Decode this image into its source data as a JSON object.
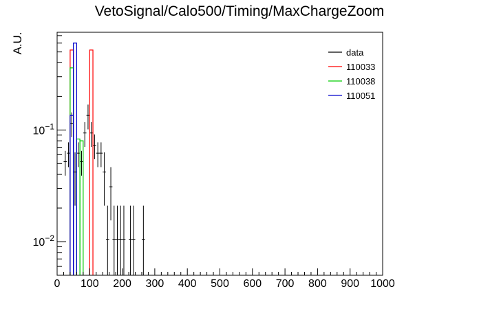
{
  "chart_data": {
    "type": "histogram",
    "title": "VetoSignal/Calo500/Timing/MaxChargeZoom",
    "ylabel": "A.U.",
    "xlabel": "",
    "xlim": [
      0,
      1000
    ],
    "ylim": [
      0.005,
      0.75
    ],
    "yscale": "log",
    "grid": false,
    "legend_position": "top-right",
    "bin_width": 10,
    "x_major_ticks": [
      0,
      100,
      200,
      300,
      400,
      500,
      600,
      700,
      800,
      900,
      1000
    ],
    "x_tick_labels": [
      "0",
      "100",
      "200",
      "300",
      "400",
      "500",
      "600",
      "700",
      "800",
      "900",
      "1000"
    ],
    "y_ticks": [
      {
        "value": 0.1,
        "base": "10",
        "exp": "−1"
      },
      {
        "value": 0.01,
        "base": "10",
        "exp": "−2"
      }
    ],
    "series": [
      {
        "name": "data",
        "kind": "points",
        "color": "#000000",
        "points": [
          {
            "x": 25,
            "y": 0.052
          },
          {
            "x": 35,
            "y": 0.062
          },
          {
            "x": 45,
            "y": 0.115
          },
          {
            "x": 55,
            "y": 0.042
          },
          {
            "x": 65,
            "y": 0.062
          },
          {
            "x": 75,
            "y": 0.052
          },
          {
            "x": 85,
            "y": 0.094
          },
          {
            "x": 95,
            "y": 0.135
          },
          {
            "x": 105,
            "y": 0.094
          },
          {
            "x": 115,
            "y": 0.073
          },
          {
            "x": 125,
            "y": 0.062
          },
          {
            "x": 135,
            "y": 0.062
          },
          {
            "x": 145,
            "y": 0.042
          },
          {
            "x": 155,
            "y": 0.0105
          },
          {
            "x": 165,
            "y": 0.031
          },
          {
            "x": 175,
            "y": 0.0105
          },
          {
            "x": 185,
            "y": 0.0105
          },
          {
            "x": 195,
            "y": 0.0105
          },
          {
            "x": 205,
            "y": 0.0105
          },
          {
            "x": 225,
            "y": 0.0105
          },
          {
            "x": 235,
            "y": 0.0105
          },
          {
            "x": 265,
            "y": 0.0105
          }
        ]
      },
      {
        "name": "110033",
        "kind": "step",
        "color": "#ff0000",
        "bins": [
          {
            "x0": 40,
            "x1": 50,
            "y": 0.52
          },
          {
            "x0": 100,
            "x1": 110,
            "y": 0.52
          }
        ]
      },
      {
        "name": "110038",
        "kind": "step",
        "color": "#00cc00",
        "bins": [
          {
            "x0": 40,
            "x1": 50,
            "y": 0.36
          },
          {
            "x0": 60,
            "x1": 70,
            "y": 0.083
          },
          {
            "x0": 70,
            "x1": 80,
            "y": 0.08
          }
        ]
      },
      {
        "name": "110051",
        "kind": "step",
        "color": "#0000cc",
        "bins": [
          {
            "x0": 40,
            "x1": 50,
            "y": 0.135
          },
          {
            "x0": 50,
            "x1": 60,
            "y": 0.6
          }
        ]
      }
    ]
  }
}
